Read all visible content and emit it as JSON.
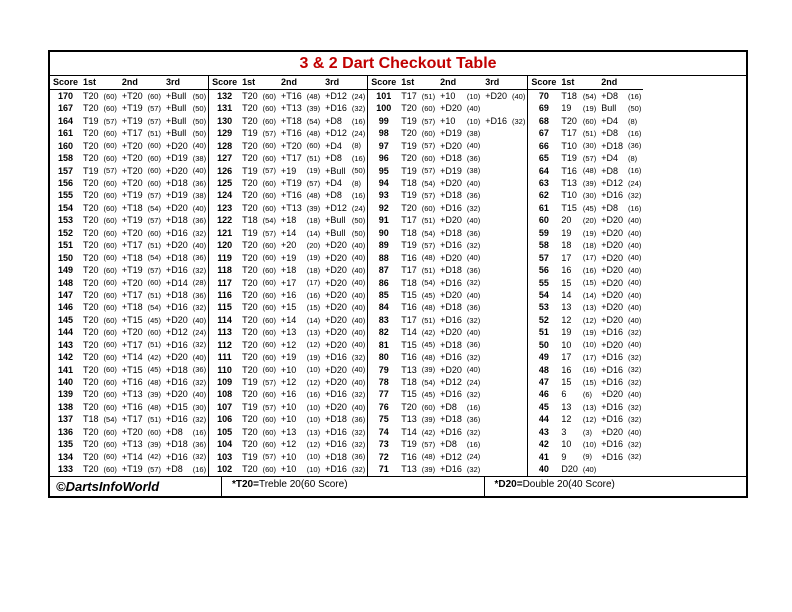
{
  "title": "3 & 2 Dart Checkout Table",
  "footer": {
    "copyright": "©DartsInfoWorld",
    "note1_prefix": "*T20=",
    "note1": "Treble 20(60 Score)",
    "note2_prefix": "*D20=",
    "note2": "Double 20(40 Score)"
  },
  "columns": [
    {
      "headers": [
        "Score",
        "1st",
        "2nd",
        "3rd"
      ],
      "rows": [
        [
          "170",
          "T20",
          "(60)",
          "+T20",
          "(60)",
          "+Bull",
          "(50)"
        ],
        [
          "167",
          "T20",
          "(60)",
          "+T19",
          "(57)",
          "+Bull",
          "(50)"
        ],
        [
          "164",
          "T19",
          "(57)",
          "+T19",
          "(57)",
          "+Bull",
          "(50)"
        ],
        [
          "161",
          "T20",
          "(60)",
          "+T17",
          "(51)",
          "+Bull",
          "(50)"
        ],
        [
          "160",
          "T20",
          "(60)",
          "+T20",
          "(60)",
          "+D20",
          "(40)"
        ],
        [
          "158",
          "T20",
          "(60)",
          "+T20",
          "(60)",
          "+D19",
          "(38)"
        ],
        [
          "157",
          "T19",
          "(57)",
          "+T20",
          "(60)",
          "+D20",
          "(40)"
        ],
        [
          "156",
          "T20",
          "(60)",
          "+T20",
          "(60)",
          "+D18",
          "(36)"
        ],
        [
          "155",
          "T20",
          "(60)",
          "+T19",
          "(57)",
          "+D19",
          "(38)"
        ],
        [
          "154",
          "T20",
          "(60)",
          "+T18",
          "(54)",
          "+D20",
          "(40)"
        ],
        [
          "153",
          "T20",
          "(60)",
          "+T19",
          "(57)",
          "+D18",
          "(36)"
        ],
        [
          "152",
          "T20",
          "(60)",
          "+T20",
          "(60)",
          "+D16",
          "(32)"
        ],
        [
          "151",
          "T20",
          "(60)",
          "+T17",
          "(51)",
          "+D20",
          "(40)"
        ],
        [
          "150",
          "T20",
          "(60)",
          "+T18",
          "(54)",
          "+D18",
          "(36)"
        ],
        [
          "149",
          "T20",
          "(60)",
          "+T19",
          "(57)",
          "+D16",
          "(32)"
        ],
        [
          "148",
          "T20",
          "(60)",
          "+T20",
          "(60)",
          "+D14",
          "(28)"
        ],
        [
          "147",
          "T20",
          "(60)",
          "+T17",
          "(51)",
          "+D18",
          "(36)"
        ],
        [
          "146",
          "T20",
          "(60)",
          "+T18",
          "(54)",
          "+D16",
          "(32)"
        ],
        [
          "145",
          "T20",
          "(60)",
          "+T15",
          "(45)",
          "+D20",
          "(40)"
        ],
        [
          "144",
          "T20",
          "(60)",
          "+T20",
          "(60)",
          "+D12",
          "(24)"
        ],
        [
          "143",
          "T20",
          "(60)",
          "+T17",
          "(51)",
          "+D16",
          "(32)"
        ],
        [
          "142",
          "T20",
          "(60)",
          "+T14",
          "(42)",
          "+D20",
          "(40)"
        ],
        [
          "141",
          "T20",
          "(60)",
          "+T15",
          "(45)",
          "+D18",
          "(36)"
        ],
        [
          "140",
          "T20",
          "(60)",
          "+T16",
          "(48)",
          "+D16",
          "(32)"
        ],
        [
          "139",
          "T20",
          "(60)",
          "+T13",
          "(39)",
          "+D20",
          "(40)"
        ],
        [
          "138",
          "T20",
          "(60)",
          "+T16",
          "(48)",
          "+D15",
          "(30)"
        ],
        [
          "137",
          "T18",
          "(54)",
          "+T17",
          "(51)",
          "+D16",
          "(32)"
        ],
        [
          "136",
          "T20",
          "(60)",
          "+T20",
          "(60)",
          "+D8",
          "(16)"
        ],
        [
          "135",
          "T20",
          "(60)",
          "+T13",
          "(39)",
          "+D18",
          "(36)"
        ],
        [
          "134",
          "T20",
          "(60)",
          "+T14",
          "(42)",
          "+D16",
          "(32)"
        ],
        [
          "133",
          "T20",
          "(60)",
          "+T19",
          "(57)",
          "+D8",
          "(16)"
        ]
      ]
    },
    {
      "headers": [
        "Score",
        "1st",
        "2nd",
        "3rd"
      ],
      "rows": [
        [
          "132",
          "T20",
          "(60)",
          "+T16",
          "(48)",
          "+D12",
          "(24)"
        ],
        [
          "131",
          "T20",
          "(60)",
          "+T13",
          "(39)",
          "+D16",
          "(32)"
        ],
        [
          "130",
          "T20",
          "(60)",
          "+T18",
          "(54)",
          "+D8",
          "(16)"
        ],
        [
          "129",
          "T19",
          "(57)",
          "+T16",
          "(48)",
          "+D12",
          "(24)"
        ],
        [
          "128",
          "T20",
          "(60)",
          "+T20",
          "(60)",
          "+D4",
          "(8)"
        ],
        [
          "127",
          "T20",
          "(60)",
          "+T17",
          "(51)",
          "+D8",
          "(16)"
        ],
        [
          "126",
          "T19",
          "(57)",
          "+19",
          "(19)",
          "+Bull",
          "(50)"
        ],
        [
          "125",
          "T20",
          "(60)",
          "+T19",
          "(57)",
          "+D4",
          "(8)"
        ],
        [
          "124",
          "T20",
          "(60)",
          "+T16",
          "(48)",
          "+D8",
          "(16)"
        ],
        [
          "123",
          "T20",
          "(60)",
          "+T13",
          "(39)",
          "+D12",
          "(24)"
        ],
        [
          "122",
          "T18",
          "(54)",
          "+18",
          "(18)",
          "+Bull",
          "(50)"
        ],
        [
          "121",
          "T19",
          "(57)",
          "+14",
          "(14)",
          "+Bull",
          "(50)"
        ],
        [
          "120",
          "T20",
          "(60)",
          "+20",
          "(20)",
          "+D20",
          "(40)"
        ],
        [
          "119",
          "T20",
          "(60)",
          "+19",
          "(19)",
          "+D20",
          "(40)"
        ],
        [
          "118",
          "T20",
          "(60)",
          "+18",
          "(18)",
          "+D20",
          "(40)"
        ],
        [
          "117",
          "T20",
          "(60)",
          "+17",
          "(17)",
          "+D20",
          "(40)"
        ],
        [
          "116",
          "T20",
          "(60)",
          "+16",
          "(16)",
          "+D20",
          "(40)"
        ],
        [
          "115",
          "T20",
          "(60)",
          "+15",
          "(15)",
          "+D20",
          "(40)"
        ],
        [
          "114",
          "T20",
          "(60)",
          "+14",
          "(14)",
          "+D20",
          "(40)"
        ],
        [
          "113",
          "T20",
          "(60)",
          "+13",
          "(13)",
          "+D20",
          "(40)"
        ],
        [
          "112",
          "T20",
          "(60)",
          "+12",
          "(12)",
          "+D20",
          "(40)"
        ],
        [
          "111",
          "T20",
          "(60)",
          "+19",
          "(19)",
          "+D16",
          "(32)"
        ],
        [
          "110",
          "T20",
          "(60)",
          "+10",
          "(10)",
          "+D20",
          "(40)"
        ],
        [
          "109",
          "T19",
          "(57)",
          "+12",
          "(12)",
          "+D20",
          "(40)"
        ],
        [
          "108",
          "T20",
          "(60)",
          "+16",
          "(16)",
          "+D16",
          "(32)"
        ],
        [
          "107",
          "T19",
          "(57)",
          "+10",
          "(10)",
          "+D20",
          "(40)"
        ],
        [
          "106",
          "T20",
          "(60)",
          "+10",
          "(10)",
          "+D18",
          "(36)"
        ],
        [
          "105",
          "T20",
          "(60)",
          "+13",
          "(13)",
          "+D16",
          "(32)"
        ],
        [
          "104",
          "T20",
          "(60)",
          "+12",
          "(12)",
          "+D16",
          "(32)"
        ],
        [
          "103",
          "T19",
          "(57)",
          "+10",
          "(10)",
          "+D18",
          "(36)"
        ],
        [
          "102",
          "T20",
          "(60)",
          "+10",
          "(10)",
          "+D16",
          "(32)"
        ]
      ]
    },
    {
      "headers": [
        "Score",
        "1st",
        "2nd",
        "3rd"
      ],
      "rows": [
        [
          "101",
          "T17",
          "(51)",
          "+10",
          "(10)",
          "+D20",
          "(40)"
        ],
        [
          "100",
          "T20",
          "(60)",
          "+D20",
          "(40)",
          "",
          ""
        ],
        [
          "99",
          "T19",
          "(57)",
          "+10",
          "(10)",
          "+D16",
          "(32)"
        ],
        [
          "98",
          "T20",
          "(60)",
          "+D19",
          "(38)",
          "",
          ""
        ],
        [
          "97",
          "T19",
          "(57)",
          "+D20",
          "(40)",
          "",
          ""
        ],
        [
          "96",
          "T20",
          "(60)",
          "+D18",
          "(36)",
          "",
          ""
        ],
        [
          "95",
          "T19",
          "(57)",
          "+D19",
          "(38)",
          "",
          ""
        ],
        [
          "94",
          "T18",
          "(54)",
          "+D20",
          "(40)",
          "",
          ""
        ],
        [
          "93",
          "T19",
          "(57)",
          "+D18",
          "(36)",
          "",
          ""
        ],
        [
          "92",
          "T20",
          "(60)",
          "+D16",
          "(32)",
          "",
          ""
        ],
        [
          "91",
          "T17",
          "(51)",
          "+D20",
          "(40)",
          "",
          ""
        ],
        [
          "90",
          "T18",
          "(54)",
          "+D18",
          "(36)",
          "",
          ""
        ],
        [
          "89",
          "T19",
          "(57)",
          "+D16",
          "(32)",
          "",
          ""
        ],
        [
          "88",
          "T16",
          "(48)",
          "+D20",
          "(40)",
          "",
          ""
        ],
        [
          "87",
          "T17",
          "(51)",
          "+D18",
          "(36)",
          "",
          ""
        ],
        [
          "86",
          "T18",
          "(54)",
          "+D16",
          "(32)",
          "",
          ""
        ],
        [
          "85",
          "T15",
          "(45)",
          "+D20",
          "(40)",
          "",
          ""
        ],
        [
          "84",
          "T16",
          "(48)",
          "+D18",
          "(36)",
          "",
          ""
        ],
        [
          "83",
          "T17",
          "(51)",
          "+D16",
          "(32)",
          "",
          ""
        ],
        [
          "82",
          "T14",
          "(42)",
          "+D20",
          "(40)",
          "",
          ""
        ],
        [
          "81",
          "T15",
          "(45)",
          "+D18",
          "(36)",
          "",
          ""
        ],
        [
          "80",
          "T16",
          "(48)",
          "+D16",
          "(32)",
          "",
          ""
        ],
        [
          "79",
          "T13",
          "(39)",
          "+D20",
          "(40)",
          "",
          ""
        ],
        [
          "78",
          "T18",
          "(54)",
          "+D12",
          "(24)",
          "",
          ""
        ],
        [
          "77",
          "T15",
          "(45)",
          "+D16",
          "(32)",
          "",
          ""
        ],
        [
          "76",
          "T20",
          "(60)",
          "+D8",
          "(16)",
          "",
          ""
        ],
        [
          "75",
          "T13",
          "(39)",
          "+D18",
          "(36)",
          "",
          ""
        ],
        [
          "74",
          "T14",
          "(42)",
          "+D16",
          "(32)",
          "",
          ""
        ],
        [
          "73",
          "T19",
          "(57)",
          "+D8",
          "(16)",
          "",
          ""
        ],
        [
          "72",
          "T16",
          "(48)",
          "+D12",
          "(24)",
          "",
          ""
        ],
        [
          "71",
          "T13",
          "(39)",
          "+D16",
          "(32)",
          "",
          ""
        ]
      ]
    },
    {
      "headers": [
        "Score",
        "1st",
        "2nd"
      ],
      "rows": [
        [
          "70",
          "T18",
          "(54)",
          "+D8",
          "(16)"
        ],
        [
          "69",
          "19",
          "(19)",
          "Bull",
          "(50)"
        ],
        [
          "68",
          "T20",
          "(60)",
          "+D4",
          "(8)"
        ],
        [
          "67",
          "T17",
          "(51)",
          "+D8",
          "(16)"
        ],
        [
          "66",
          "T10",
          "(30)",
          "+D18",
          "(36)"
        ],
        [
          "65",
          "T19",
          "(57)",
          "+D4",
          "(8)"
        ],
        [
          "64",
          "T16",
          "(48)",
          "+D8",
          "(16)"
        ],
        [
          "63",
          "T13",
          "(39)",
          "+D12",
          "(24)"
        ],
        [
          "62",
          "T10",
          "(30)",
          "+D16",
          "(32)"
        ],
        [
          "61",
          "T15",
          "(45)",
          "+D8",
          "(16)"
        ],
        [
          "60",
          "20",
          "(20)",
          "+D20",
          "(40)"
        ],
        [
          "59",
          "19",
          "(19)",
          "+D20",
          "(40)"
        ],
        [
          "58",
          "18",
          "(18)",
          "+D20",
          "(40)"
        ],
        [
          "57",
          "17",
          "(17)",
          "+D20",
          "(40)"
        ],
        [
          "56",
          "16",
          "(16)",
          "+D20",
          "(40)"
        ],
        [
          "55",
          "15",
          "(15)",
          "+D20",
          "(40)"
        ],
        [
          "54",
          "14",
          "(14)",
          "+D20",
          "(40)"
        ],
        [
          "53",
          "13",
          "(13)",
          "+D20",
          "(40)"
        ],
        [
          "52",
          "12",
          "(12)",
          "+D20",
          "(40)"
        ],
        [
          "51",
          "19",
          "(19)",
          "+D16",
          "(32)"
        ],
        [
          "50",
          "10",
          "(10)",
          "+D20",
          "(40)"
        ],
        [
          "49",
          "17",
          "(17)",
          "+D16",
          "(32)"
        ],
        [
          "48",
          "16",
          "(16)",
          "+D16",
          "(32)"
        ],
        [
          "47",
          "15",
          "(15)",
          "+D16",
          "(32)"
        ],
        [
          "46",
          "6",
          "(6)",
          "+D20",
          "(40)"
        ],
        [
          "45",
          "13",
          "(13)",
          "+D16",
          "(32)"
        ],
        [
          "44",
          "12",
          "(12)",
          "+D16",
          "(32)"
        ],
        [
          "43",
          "3",
          "(3)",
          "+D20",
          "(40)"
        ],
        [
          "42",
          "10",
          "(10)",
          "+D16",
          "(32)"
        ],
        [
          "41",
          "9",
          "(9)",
          "+D16",
          "(32)"
        ],
        [
          "40",
          "D20",
          "(40)",
          "",
          ""
        ]
      ]
    }
  ]
}
